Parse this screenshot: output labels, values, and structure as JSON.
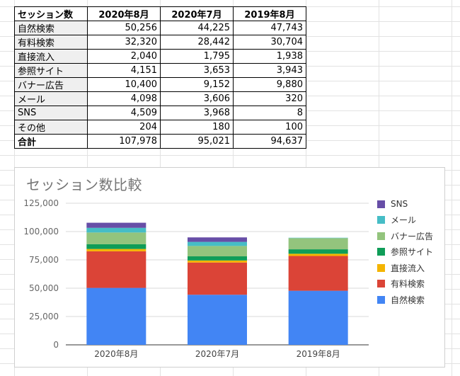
{
  "table": {
    "corner": "セッション数",
    "columns": [
      "2020年8月",
      "2020年7月",
      "2019年8月"
    ],
    "rows": [
      {
        "label": "自然検索",
        "values": [
          "50,256",
          "44,225",
          "47,743"
        ]
      },
      {
        "label": "有料検索",
        "values": [
          "32,320",
          "28,442",
          "30,704"
        ]
      },
      {
        "label": "直接流入",
        "values": [
          "2,040",
          "1,795",
          "1,938"
        ]
      },
      {
        "label": "参照サイト",
        "values": [
          "4,151",
          "3,653",
          "3,943"
        ]
      },
      {
        "label": "バナー広告",
        "values": [
          "10,400",
          "9,152",
          "9,880"
        ]
      },
      {
        "label": "メール",
        "values": [
          "4,098",
          "3,606",
          "320"
        ]
      },
      {
        "label": "SNS",
        "values": [
          "4,509",
          "3,968",
          "8"
        ]
      },
      {
        "label": "その他",
        "values": [
          "204",
          "180",
          "100"
        ]
      }
    ],
    "total": {
      "label": "合計",
      "values": [
        "107,978",
        "95,021",
        "94,637"
      ]
    }
  },
  "chart_data": {
    "type": "bar",
    "stacked": true,
    "title": "セッション数比較",
    "categories": [
      "2020年8月",
      "2020年7月",
      "2019年8月"
    ],
    "ylim": [
      0,
      125000
    ],
    "yticks": [
      0,
      25000,
      50000,
      75000,
      100000,
      125000
    ],
    "ytick_labels": [
      "0",
      "25,000",
      "50,000",
      "75,000",
      "100,000",
      "125,000"
    ],
    "grid": true,
    "legend_position": "right",
    "series": [
      {
        "name": "自然検索",
        "color": "#4285f4",
        "values": [
          50256,
          44225,
          47743
        ]
      },
      {
        "name": "有料検索",
        "color": "#db4437",
        "values": [
          32320,
          28442,
          30704
        ]
      },
      {
        "name": "直接流入",
        "color": "#f4b400",
        "values": [
          2040,
          1795,
          1938
        ]
      },
      {
        "name": "参照サイト",
        "color": "#0f9d58",
        "values": [
          4151,
          3653,
          3943
        ]
      },
      {
        "name": "バナー広告",
        "color": "#93c47d",
        "values": [
          10400,
          9152,
          9880
        ]
      },
      {
        "name": "メール",
        "color": "#46bdc6",
        "values": [
          4098,
          3606,
          320
        ]
      },
      {
        "name": "SNS",
        "color": "#674ea7",
        "values": [
          4509,
          3968,
          8
        ]
      }
    ]
  }
}
